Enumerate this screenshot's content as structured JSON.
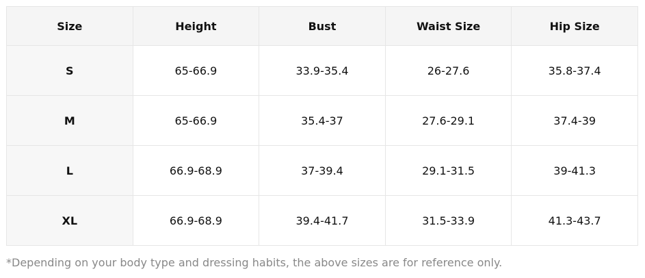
{
  "table": {
    "header": [
      "Size",
      "Height",
      "Bust",
      "Waist Size",
      "Hip Size"
    ],
    "rows": [
      [
        "S",
        "65-66.9",
        "33.9-35.4",
        "26-27.6",
        "35.8-37.4"
      ],
      [
        "M",
        "65-66.9",
        "35.4-37",
        "27.6-29.1",
        "37.4-39"
      ],
      [
        "L",
        "66.9-68.9",
        "37-39.4",
        "29.1-31.5",
        "39-41.3"
      ],
      [
        "XL",
        "66.9-68.9",
        "39.4-41.7",
        "31.5-33.9",
        "41.3-43.7"
      ]
    ]
  },
  "note": "*Depending on your body type and dressing habits, the above sizes are for reference only."
}
